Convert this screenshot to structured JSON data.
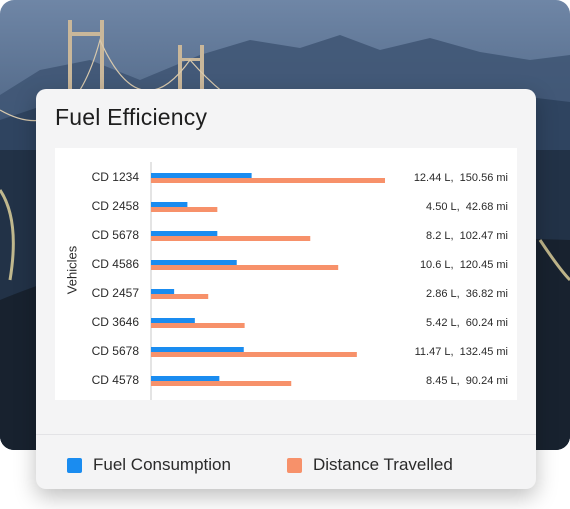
{
  "chart_data": {
    "type": "bar",
    "orientation": "horizontal",
    "title": "Fuel Efficiency",
    "ylabel": "Vehicles",
    "categories": [
      "CD 1234",
      "CD 2458",
      "CD 5678",
      "CD 4586",
      "CD 2457",
      "CD 3646",
      "CD 5678",
      "CD 4578"
    ],
    "series": [
      {
        "name": "Fuel Consumption",
        "unit": "L",
        "color": "#1a8cf0",
        "values": [
          12.44,
          4.5,
          8.2,
          10.6,
          2.86,
          5.42,
          11.47,
          8.45
        ]
      },
      {
        "name": "Distance Travelled",
        "unit": "mi",
        "color": "#f7916a",
        "values": [
          150.56,
          42.68,
          102.47,
          120.45,
          36.82,
          60.24,
          132.45,
          90.24
        ]
      }
    ],
    "value_labels": [
      "12.44 L,  150.56 mi",
      "4.50 L,  42.68 mi",
      "8.2 L,  102.47 mi",
      "10.6 L,  120.45 mi",
      "2.86 L,  36.82 mi",
      "5.42 L,  60.24 mi",
      "11.47 L,  132.45 mi",
      "8.45 L,  90.24 mi"
    ],
    "legend": "bottom",
    "grid": false
  }
}
